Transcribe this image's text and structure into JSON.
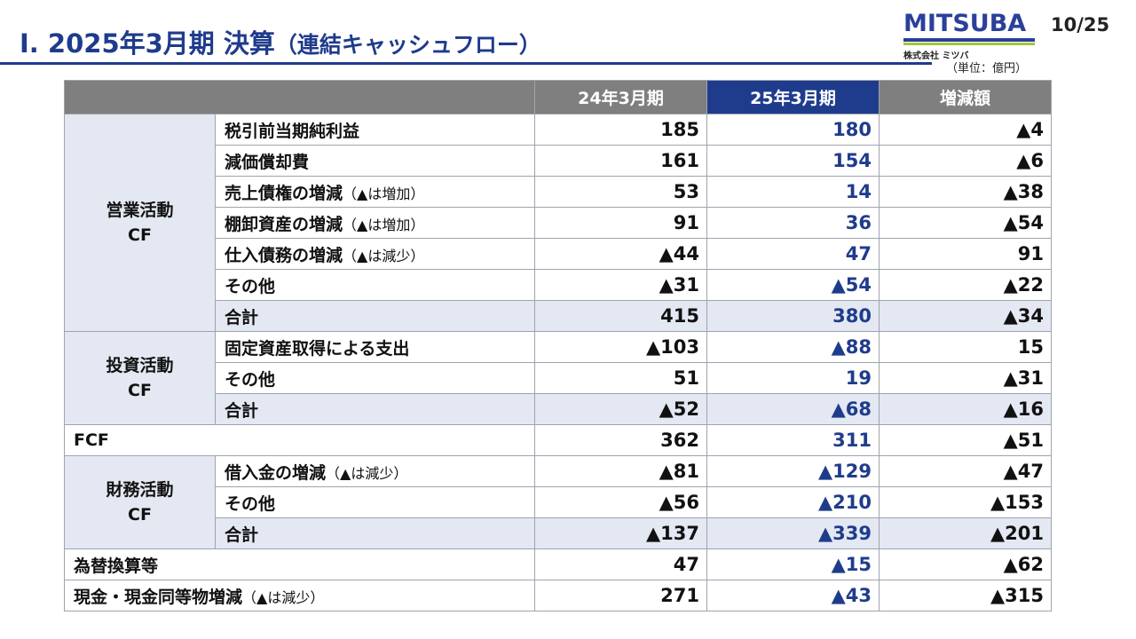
{
  "header": {
    "title": "Ⅰ. 2025年3月期 決算",
    "subtitle": "（連結キャッシュフロー）",
    "page": "10/25",
    "unit": "（単位：億円）"
  },
  "logo": {
    "brand": "MITSUBA",
    "company": "株式会社 ミツバ",
    "colors": {
      "primary": "#2b3f9b",
      "accent": "#a3c73a"
    }
  },
  "table": {
    "columns": [
      "24年3月期",
      "25年3月期",
      "増減額"
    ],
    "colors": {
      "header_gray": "#7f7f7f",
      "header_blue": "#1f3b8c",
      "current_value": "#1f3b8c",
      "group_bg": "#e3e8f2"
    },
    "groups": {
      "operating": {
        "label1": "営業活動",
        "label2": "CF"
      },
      "investing": {
        "label1": "投資活動",
        "label2": "CF"
      },
      "financing": {
        "label1": "財務活動",
        "label2": "CF"
      }
    },
    "rows": [
      {
        "label": "税引前当期純利益",
        "note": "",
        "prev": "185",
        "cur": "180",
        "diff": "▲4"
      },
      {
        "label": "減価償却費",
        "note": "",
        "prev": "161",
        "cur": "154",
        "diff": "▲6"
      },
      {
        "label": "売上債権の増減",
        "note": "（▲は増加）",
        "prev": "53",
        "cur": "14",
        "diff": "▲38"
      },
      {
        "label": "棚卸資産の増減",
        "note": "（▲は増加）",
        "prev": "91",
        "cur": "36",
        "diff": "▲54"
      },
      {
        "label": "仕入債務の増減",
        "note": "（▲は減少）",
        "prev": "▲44",
        "cur": "47",
        "diff": "91"
      },
      {
        "label": "その他",
        "note": "",
        "prev": "▲31",
        "cur": "▲54",
        "diff": "▲22"
      },
      {
        "label": "合計",
        "note": "",
        "prev": "415",
        "cur": "380",
        "diff": "▲34"
      },
      {
        "label": "固定資産取得による支出",
        "note": "",
        "prev": "▲103",
        "cur": "▲88",
        "diff": "15"
      },
      {
        "label": "その他",
        "note": "",
        "prev": "51",
        "cur": "19",
        "diff": "▲31"
      },
      {
        "label": "合計",
        "note": "",
        "prev": "▲52",
        "cur": "▲68",
        "diff": "▲16"
      },
      {
        "label": "FCF",
        "note": "",
        "prev": "362",
        "cur": "311",
        "diff": "▲51"
      },
      {
        "label": "借入金の増減",
        "note": "（▲は減少）",
        "prev": "▲81",
        "cur": "▲129",
        "diff": "▲47"
      },
      {
        "label": "その他",
        "note": "",
        "prev": "▲56",
        "cur": "▲210",
        "diff": "▲153"
      },
      {
        "label": "合計",
        "note": "",
        "prev": "▲137",
        "cur": "▲339",
        "diff": "▲201"
      },
      {
        "label": "為替換算等",
        "note": "",
        "prev": "47",
        "cur": "▲15",
        "diff": "▲62"
      },
      {
        "label": "現金・現金同等物増減",
        "note": "（▲は減少）",
        "prev": "271",
        "cur": "▲43",
        "diff": "▲315"
      }
    ]
  }
}
